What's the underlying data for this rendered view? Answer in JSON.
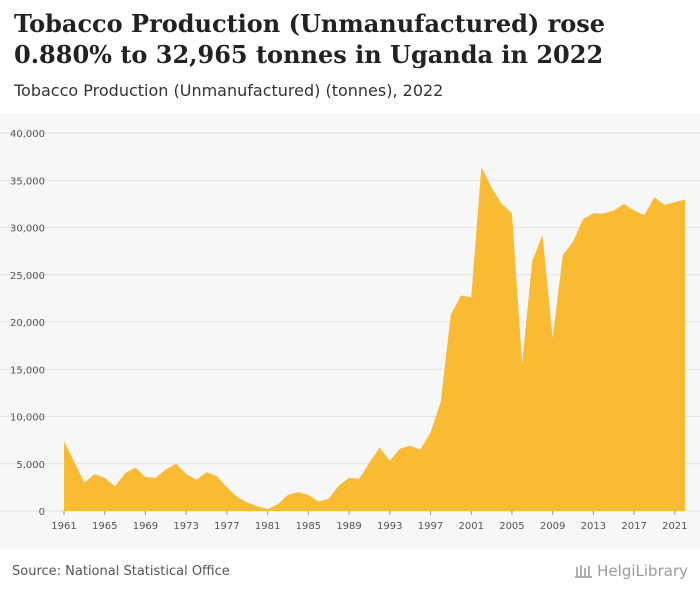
{
  "title": "Tobacco Production (Unmanufactured) rose 0.880% to 32,965 tonnes in Uganda in 2022",
  "subtitle": "Tobacco Production (Unmanufactured) (tonnes), 2022",
  "source": "Source: National Statistical Office",
  "logo_text": "HelgiLibrary",
  "colors": {
    "area": "#f9bb33",
    "grid": "#e2e2e2",
    "tick": "#555555",
    "background": "#f7f7f7"
  },
  "chart_data": {
    "type": "area",
    "title": "Tobacco Production (Unmanufactured) (tonnes), 2022",
    "xlabel": "",
    "ylabel": "tonnes",
    "ylim": [
      0,
      40000
    ],
    "yticks": [
      0,
      5000,
      10000,
      15000,
      20000,
      25000,
      30000,
      35000,
      40000
    ],
    "ytick_labels": [
      "0",
      "5,000",
      "10,000",
      "15,000",
      "20,000",
      "25,000",
      "30,000",
      "35,000",
      "40,000"
    ],
    "xticks": [
      "1961",
      "1965",
      "1969",
      "1973",
      "1977",
      "1981",
      "1985",
      "1989",
      "1993",
      "1997",
      "2001",
      "2005",
      "2009",
      "2013",
      "2017",
      "2021"
    ],
    "grid": true,
    "series": [
      {
        "name": "Uganda",
        "x": [
          1961,
          1962,
          1963,
          1964,
          1965,
          1966,
          1967,
          1968,
          1969,
          1970,
          1971,
          1972,
          1973,
          1974,
          1975,
          1976,
          1977,
          1978,
          1979,
          1980,
          1981,
          1982,
          1983,
          1984,
          1985,
          1986,
          1987,
          1988,
          1989,
          1990,
          1991,
          1992,
          1993,
          1994,
          1995,
          1996,
          1997,
          1998,
          1999,
          2000,
          2001,
          2002,
          2003,
          2004,
          2005,
          2006,
          2007,
          2008,
          2009,
          2010,
          2011,
          2012,
          2013,
          2014,
          2015,
          2016,
          2017,
          2018,
          2019,
          2020,
          2021,
          2022
        ],
        "values": [
          7400,
          5200,
          3000,
          3900,
          3500,
          2600,
          4000,
          4600,
          3600,
          3500,
          4400,
          5000,
          3900,
          3300,
          4100,
          3700,
          2500,
          1500,
          900,
          500,
          200,
          700,
          1700,
          2000,
          1700,
          1000,
          1300,
          2700,
          3500,
          3400,
          5100,
          6700,
          5300,
          6600,
          6900,
          6500,
          8300,
          11500,
          20800,
          22800,
          22600,
          36400,
          34200,
          32500,
          31500,
          15600,
          26500,
          29200,
          18300,
          27100,
          28500,
          30900,
          31500,
          31500,
          31800,
          32500,
          31800,
          31300,
          33200,
          32400,
          32680,
          32965
        ]
      }
    ]
  }
}
